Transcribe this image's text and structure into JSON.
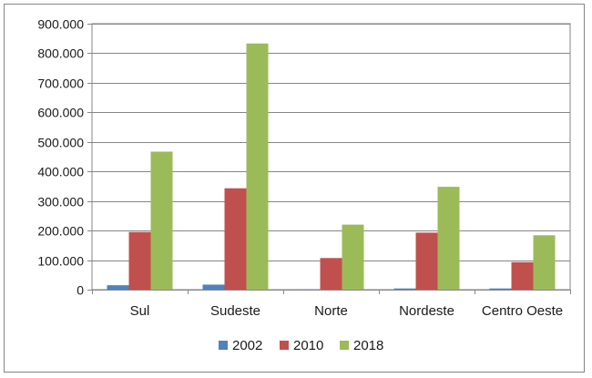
{
  "chart_data": {
    "type": "bar",
    "title": "",
    "xlabel": "",
    "ylabel": "",
    "categories": [
      "Sul",
      "Sudeste",
      "Norte",
      "Nordeste",
      "Centro Oeste"
    ],
    "series": [
      {
        "name": "2002",
        "color": "#4f81bd",
        "values": [
          15000,
          17000,
          1000,
          4000,
          4000
        ]
      },
      {
        "name": "2010",
        "color": "#c0504d",
        "values": [
          195000,
          343000,
          107000,
          193000,
          93000
        ]
      },
      {
        "name": "2018",
        "color": "#9bbb59",
        "values": [
          467000,
          833000,
          220000,
          348000,
          184000
        ]
      }
    ],
    "ylim": [
      0,
      900000
    ],
    "yticks": [
      0,
      100000,
      200000,
      300000,
      400000,
      500000,
      600000,
      700000,
      800000,
      900000
    ],
    "ytick_labels": [
      "0",
      "100.000",
      "200.000",
      "300.000",
      "400.000",
      "500.000",
      "600.000",
      "700.000",
      "800.000",
      "900.000"
    ],
    "grid": true,
    "legend_position": "bottom"
  }
}
